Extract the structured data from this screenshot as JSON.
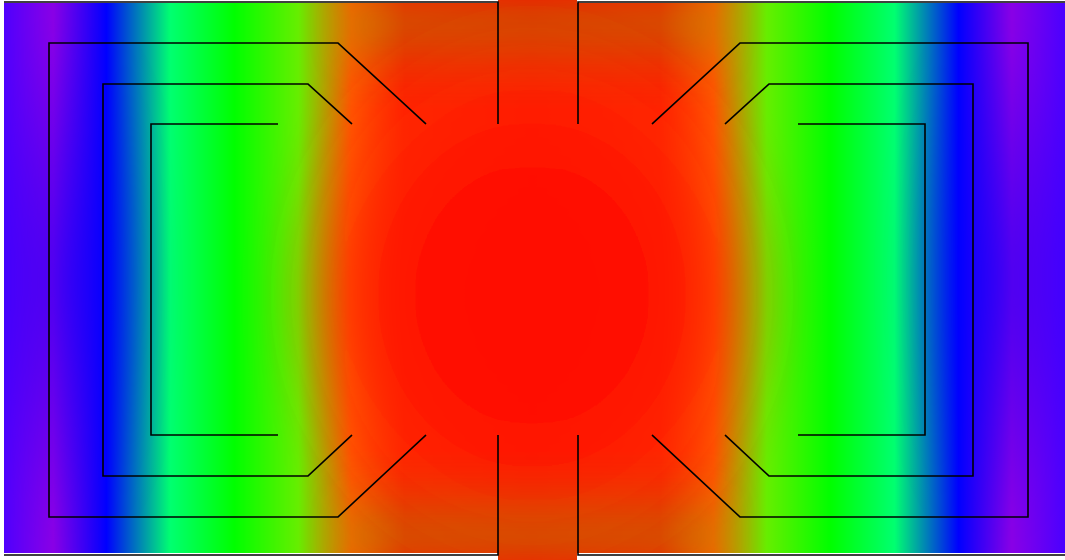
{
  "field_map": {
    "colormap": [
      "#9a00e0",
      "#0000ff",
      "#00ff00",
      "#ffcc00",
      "#ff0000"
    ],
    "background_color": "#ffffff",
    "line_color": "#000000"
  }
}
